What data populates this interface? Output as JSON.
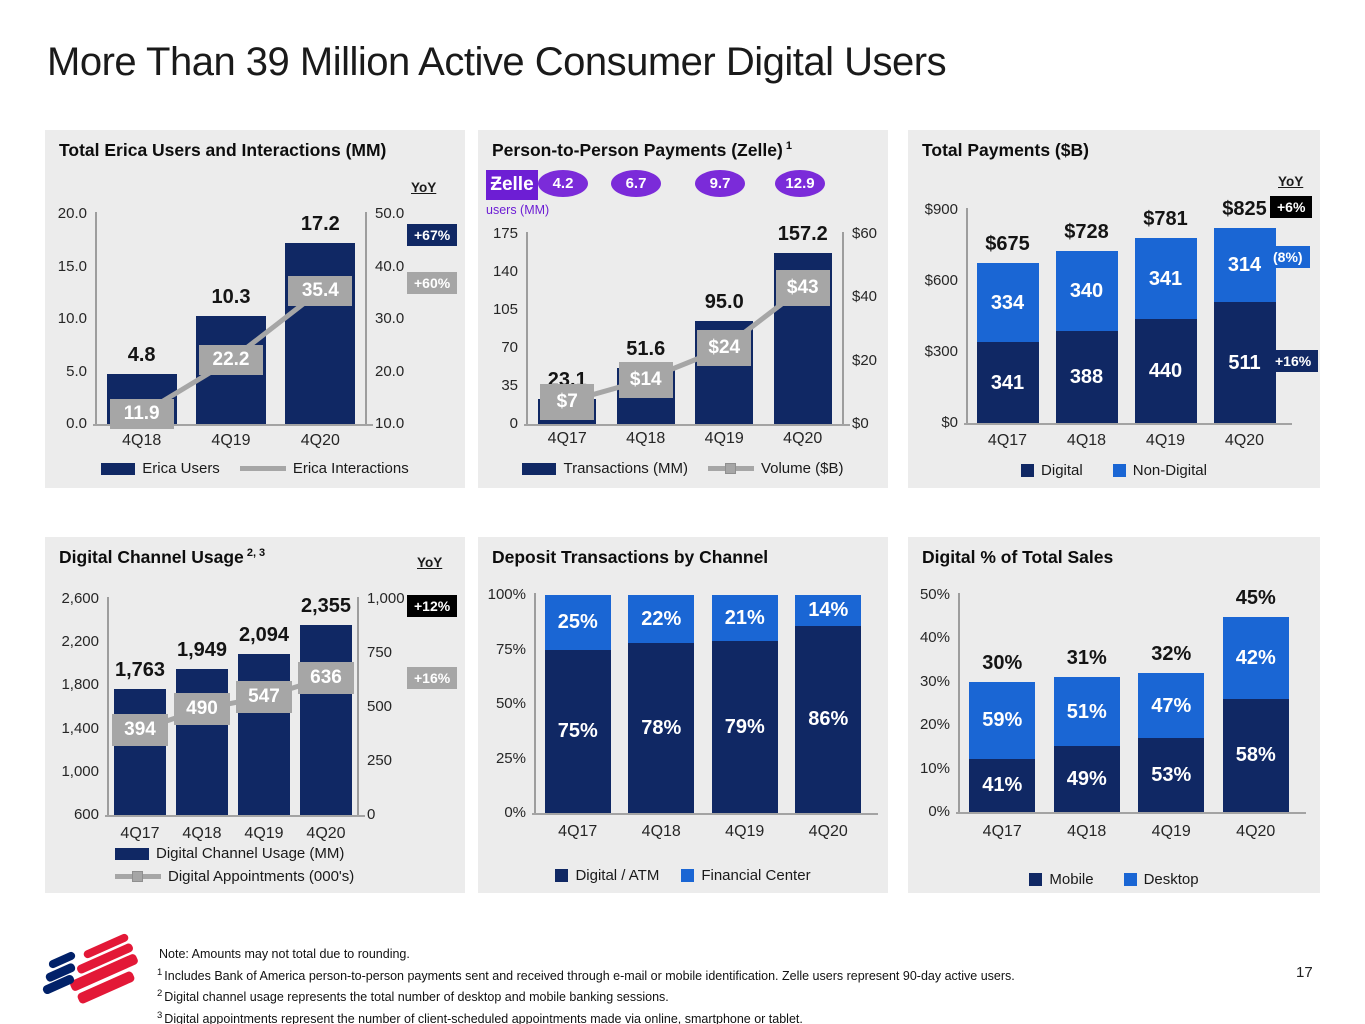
{
  "slide": {
    "title": "More Than 39 Million Active Consumer Digital Users",
    "page_number": "17",
    "footnotes": [
      {
        "sup": "",
        "text": "Note: Amounts may not total due to rounding."
      },
      {
        "sup": "1",
        "text": "Includes Bank of America person-to-person payments sent and received through e-mail or mobile identification. Zelle users represent 90-day active users."
      },
      {
        "sup": "2",
        "text": "Digital channel usage represents the total number of desktop and mobile banking sessions."
      },
      {
        "sup": "3",
        "text": "Digital appointments represent the number of client-scheduled appointments made via online, smartphone or tablet."
      }
    ]
  },
  "colors": {
    "navy": "#102864",
    "blue": "#1A66D4",
    "gray": "#A6A6A6",
    "black": "#000000",
    "purple": "#7B2BD9",
    "purple_dark": "#6D1ED4",
    "panel_bg": "#ECECEC",
    "logo_red": "#E31837",
    "logo_navy": "#012169"
  },
  "chart_data": [
    {
      "id": "erica",
      "type": "bar",
      "title": "Total Erica Users and Interactions (MM)",
      "title_sup": "",
      "yoy": {
        "label": "YoY",
        "badges": [
          {
            "text": "+67%",
            "style": "navy"
          },
          {
            "text": "+60%",
            "style": "gray"
          }
        ]
      },
      "categories": [
        "4Q18",
        "4Q19",
        "4Q20"
      ],
      "bar_series": {
        "name": "Erica Users",
        "values": [
          4.8,
          10.3,
          17.2
        ],
        "labels": [
          "4.8",
          "10.3",
          "17.2"
        ]
      },
      "line_series": {
        "name": "Erica Interactions",
        "values": [
          11.9,
          22.2,
          35.4
        ],
        "labels": [
          "11.9",
          "22.2",
          "35.4"
        ]
      },
      "left_axis": {
        "min": 0,
        "max": 20,
        "ticks": [
          "20.0",
          "15.0",
          "10.0",
          "5.0",
          "0.0"
        ]
      },
      "right_axis": {
        "min": 10,
        "max": 50,
        "ticks": [
          "50.0",
          "40.0",
          "30.0",
          "20.0",
          "10.0"
        ]
      }
    },
    {
      "id": "zelle",
      "type": "bar",
      "title": "Person-to-Person Payments (Zelle)",
      "title_sup": "1",
      "zelle": {
        "logo": "Ƶelle",
        "caption": "users (MM)",
        "ovals": [
          "4.2",
          "6.7",
          "9.7",
          "12.9"
        ]
      },
      "categories": [
        "4Q17",
        "4Q18",
        "4Q19",
        "4Q20"
      ],
      "bar_series": {
        "name": "Transactions (MM)",
        "values": [
          23.1,
          51.6,
          95.0,
          157.2
        ],
        "labels": [
          "23.1",
          "51.6",
          "95.0",
          "157.2"
        ]
      },
      "line_series": {
        "name": "Volume ($B)",
        "values": [
          7,
          14,
          24,
          43
        ],
        "labels": [
          "$7",
          "$14",
          "$24",
          "$43"
        ]
      },
      "left_axis": {
        "min": 0,
        "max": 175,
        "ticks": [
          "175",
          "140",
          "105",
          "70",
          "35",
          "0"
        ]
      },
      "right_axis": {
        "min": 0,
        "max": 60,
        "ticks": [
          "$60",
          "$40",
          "$20",
          "$0"
        ]
      }
    },
    {
      "id": "payments",
      "type": "stacked-bar",
      "title": "Total Payments ($B)",
      "title_sup": "",
      "yoy": {
        "label": "YoY",
        "badges": [
          {
            "text": "+6%",
            "style": "black"
          },
          {
            "text": "(8%)",
            "style": "blue"
          },
          {
            "text": "+16%",
            "style": "navy"
          }
        ]
      },
      "categories": [
        "4Q17",
        "4Q18",
        "4Q19",
        "4Q20"
      ],
      "totals": {
        "values": [
          675,
          728,
          781,
          825
        ],
        "labels": [
          "$675",
          "$728",
          "$781",
          "$825"
        ]
      },
      "series": [
        {
          "name": "Digital",
          "color": "navy",
          "values": [
            341,
            388,
            440,
            511
          ],
          "labels": [
            "341",
            "388",
            "440",
            "511"
          ]
        },
        {
          "name": "Non-Digital",
          "color": "blue",
          "values": [
            334,
            340,
            341,
            314
          ],
          "labels": [
            "334",
            "340",
            "341",
            "314"
          ]
        }
      ],
      "left_axis": {
        "min": 0,
        "max": 900,
        "ticks": [
          "$900",
          "$600",
          "$300",
          "$0"
        ]
      }
    },
    {
      "id": "digital-channel",
      "type": "bar",
      "title": "Digital Channel Usage",
      "title_sup": "2, 3",
      "yoy": {
        "label": "YoY",
        "badges": [
          {
            "text": "+12%",
            "style": "black"
          },
          {
            "text": "+16%",
            "style": "gray"
          }
        ]
      },
      "categories": [
        "4Q17",
        "4Q18",
        "4Q19",
        "4Q20"
      ],
      "bar_series": {
        "name": "Digital Channel Usage (MM)",
        "values": [
          1763,
          1949,
          2094,
          2355
        ],
        "labels": [
          "1,763",
          "1,949",
          "2,094",
          "2,355"
        ]
      },
      "line_series": {
        "name": "Digital Appointments (000's)",
        "values": [
          394,
          490,
          547,
          636
        ],
        "labels": [
          "394",
          "490",
          "547",
          "636"
        ]
      },
      "left_axis": {
        "min": 600,
        "max": 2600,
        "ticks": [
          "2,600",
          "2,200",
          "1,800",
          "1,400",
          "1,000",
          "600"
        ]
      },
      "right_axis": {
        "min": 0,
        "max": 1000,
        "ticks": [
          "1,000",
          "750",
          "500",
          "250",
          "0"
        ]
      }
    },
    {
      "id": "deposits",
      "type": "stacked-bar",
      "title": "Deposit Transactions by Channel",
      "title_sup": "",
      "categories": [
        "4Q17",
        "4Q18",
        "4Q19",
        "4Q20"
      ],
      "series": [
        {
          "name": "Digital / ATM",
          "color": "navy",
          "values": [
            75,
            78,
            79,
            86
          ],
          "labels": [
            "75%",
            "78%",
            "79%",
            "86%"
          ]
        },
        {
          "name": "Financial Center",
          "color": "blue",
          "values": [
            25,
            22,
            21,
            14
          ],
          "labels": [
            "25%",
            "22%",
            "21%",
            "14%"
          ]
        }
      ],
      "left_axis": {
        "min": 0,
        "max": 100,
        "ticks": [
          "100%",
          "75%",
          "50%",
          "25%",
          "0%"
        ]
      }
    },
    {
      "id": "digital-sales",
      "type": "stacked-bar",
      "title": "Digital % of Total Sales",
      "title_sup": "",
      "categories": [
        "4Q17",
        "4Q18",
        "4Q19",
        "4Q20"
      ],
      "totals": {
        "values": [
          30,
          31,
          32,
          45
        ],
        "labels": [
          "30%",
          "31%",
          "32%",
          "45%"
        ]
      },
      "series": [
        {
          "name": "Mobile",
          "color": "navy",
          "values": [
            12.3,
            15.2,
            17.0,
            26.1
          ],
          "labels": [
            "41%",
            "49%",
            "53%",
            "58%"
          ]
        },
        {
          "name": "Desktop",
          "color": "blue",
          "values": [
            17.7,
            15.8,
            15.0,
            18.9
          ],
          "labels": [
            "59%",
            "51%",
            "47%",
            "42%"
          ]
        }
      ],
      "left_axis": {
        "min": 0,
        "max": 50,
        "ticks": [
          "50%",
          "40%",
          "30%",
          "20%",
          "10%",
          "0%"
        ]
      }
    }
  ]
}
